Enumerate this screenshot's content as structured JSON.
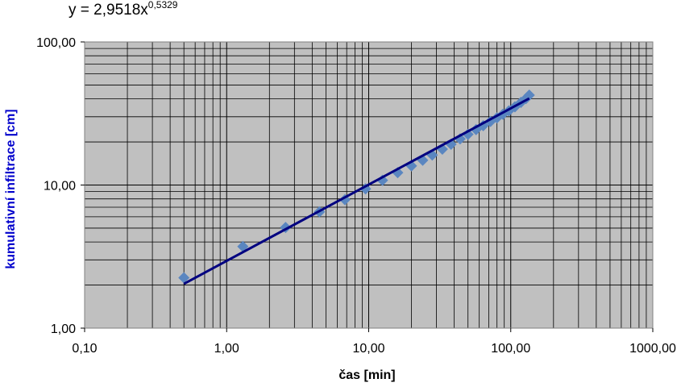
{
  "chart_data": {
    "type": "scatter",
    "trendline_equation": {
      "base": "y = 2,9518x",
      "exponent": "0,5329"
    },
    "trendline": {
      "coefficient": 2.9518,
      "exponent": 0.5329,
      "x_range": [
        0.5,
        135
      ]
    },
    "xlabel": "čas [min]",
    "ylabel": "kumulativní infiltrace [cm]",
    "x_scale": "log",
    "y_scale": "log",
    "xlim": [
      0.1,
      1000
    ],
    "ylim": [
      1,
      100
    ],
    "x_ticks": [
      {
        "value": 0.1,
        "label": "0,10"
      },
      {
        "value": 1,
        "label": "1,00"
      },
      {
        "value": 10,
        "label": "10,00"
      },
      {
        "value": 100,
        "label": "100,00"
      },
      {
        "value": 1000,
        "label": "1000,00"
      }
    ],
    "y_ticks": [
      {
        "value": 1,
        "label": "1,00"
      },
      {
        "value": 10,
        "label": "10,00"
      },
      {
        "value": 100,
        "label": "100,00"
      }
    ],
    "grid": true,
    "legend": "none",
    "x": [
      0.5,
      1.3,
      2.6,
      4.5,
      6.8,
      9.5,
      12.5,
      16,
      20,
      24,
      28,
      33,
      38,
      44,
      50,
      57,
      64,
      72,
      80,
      88,
      97,
      107,
      118,
      128,
      135
    ],
    "y": [
      2.25,
      3.72,
      5.05,
      6.5,
      7.9,
      9.4,
      10.8,
      12.2,
      13.6,
      14.9,
      16.2,
      17.8,
      19.3,
      21.0,
      22.6,
      24.4,
      26.0,
      27.8,
      29.5,
      31.2,
      33.0,
      35.2,
      37.8,
      40.2,
      42.5
    ],
    "colors": {
      "plot_background": "#c0c0c0",
      "gridlines": "#000000",
      "markers": "#5a86c0",
      "trendline": "#000080",
      "ylabel": "#0000cc"
    }
  }
}
